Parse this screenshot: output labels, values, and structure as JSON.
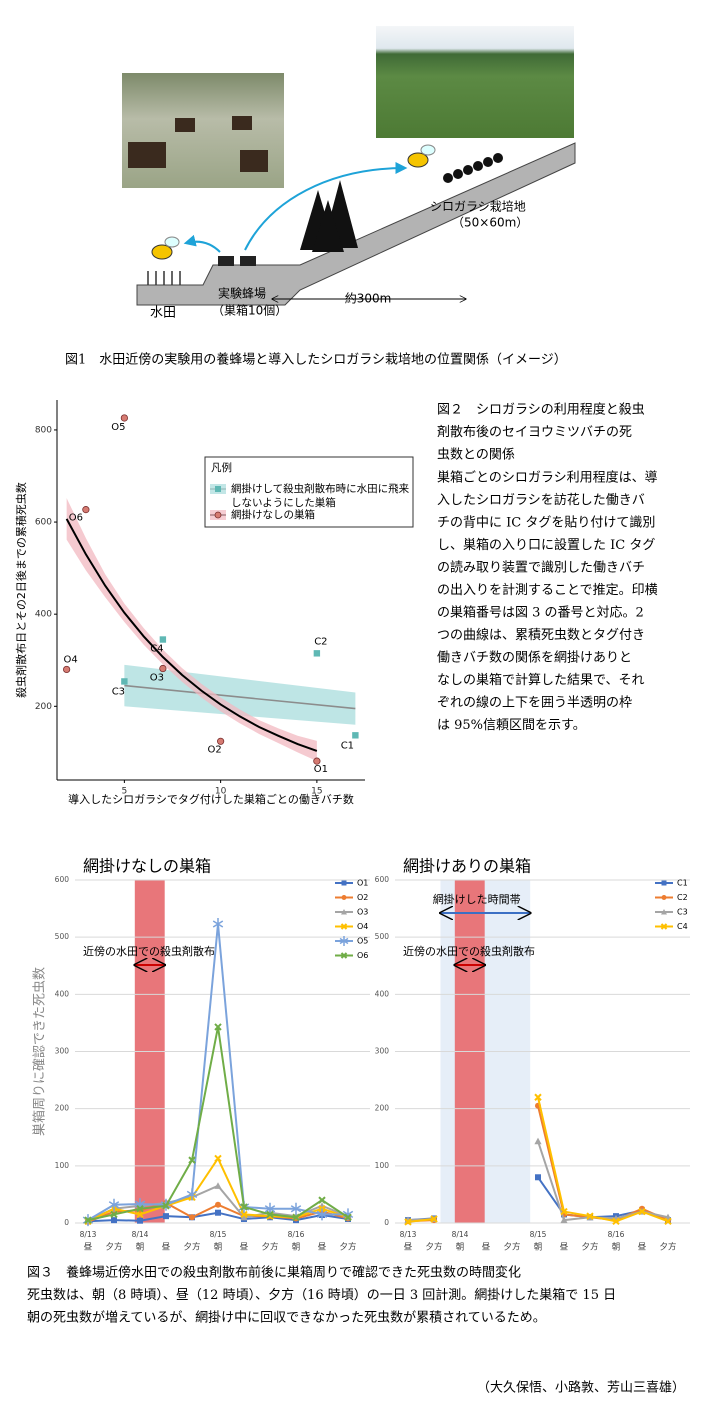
{
  "figure1": {
    "labels": {
      "paddy": "水田",
      "apiary": "実験蜂場",
      "hives": "（巣箱10個）",
      "distance": "約300m",
      "field": "シロガラシ栽培地",
      "field_size": "（50×60m）"
    },
    "caption": "図1　水田近傍の実験用の養蜂場と導入したシロガラシ栽培地の位置関係（イメージ）"
  },
  "figure2_caption": {
    "title_lines": [
      "図２　シロガラシの利用程度と殺虫",
      "剤散布後のセイヨウミツバチの死",
      "虫数との関係"
    ],
    "body_lines": [
      "巣箱ごとのシロガラシ利用程度は、導",
      "入したシロガラシを訪花した働きバ",
      "チの背中に IC タグを貼り付けて識別",
      "し、巣箱の入り口に設置した IC タグ",
      "の読み取り装置で識別した働きバチ",
      "の出入りを計測することで推定。印横",
      "の巣箱番号は図 3 の番号と対応。2",
      "つの曲線は、累積死虫数とタグ付き",
      "働きバチ数の関係を網掛けありと",
      "なしの巣箱で計算した結果で、それ",
      "ぞれの線の上下を囲う半透明の枠",
      "は 95%信頼区間を示す。"
    ]
  },
  "chart_data": [
    {
      "type": "scatter",
      "xlabel": "導入したシロガラシでタグ付けした巣箱ごとの働きバチ数",
      "ylabel": "殺虫剤散布日とその2日後までの累積死虫数",
      "xlim": [
        1.5,
        17.5
      ],
      "ylim": [
        40,
        865
      ],
      "xticks": [
        5,
        10,
        15
      ],
      "yticks": [
        200,
        400,
        600,
        800
      ],
      "legend_title": "凡例",
      "legend": "upper right",
      "series": [
        {
          "name": "網掛けして殺虫剤散布時に水田に飛来しないようにした巣箱",
          "color": "#5fb8b4",
          "marker": "square",
          "labels": [
            "C1",
            "C2",
            "C3",
            "C4"
          ],
          "x": [
            17,
            15,
            5,
            7
          ],
          "values": [
            137,
            315,
            254,
            345
          ],
          "fit": {
            "color": "#8c8c8c",
            "band_color": "#a8dcdc",
            "x": [
              5,
              17
            ],
            "values": [
              245,
              195
            ],
            "lower": [
              200,
              160
            ],
            "upper": [
              290,
              230
            ]
          }
        },
        {
          "name": "網掛けなしの巣箱",
          "color": "#d67b72",
          "marker": "circle",
          "labels": [
            "O1",
            "O2",
            "O3",
            "O4",
            "O5",
            "O6"
          ],
          "x": [
            15,
            10,
            7,
            2,
            5,
            3
          ],
          "values": [
            81,
            124,
            282,
            280,
            826,
            627
          ],
          "fit": {
            "color": "#000000",
            "band_color": "#f2b8c0",
            "x": [
              2,
              3,
              4,
              5,
              6,
              7,
              8,
              9,
              10,
              11,
              12,
              13,
              14,
              15
            ],
            "values": [
              607,
              530,
              462,
              403,
              352,
              307,
              268,
              234,
              204,
              178,
              155,
              136,
              118,
              103
            ],
            "lower": [
              562,
              495,
              437,
              383,
              334,
              291,
              253,
              219,
              189,
              163,
              140,
              120,
              100,
              81
            ],
            "upper": [
              652,
              565,
              487,
              423,
              370,
              323,
              283,
              249,
              219,
              193,
              170,
              152,
              136,
              125
            ]
          }
        }
      ]
    },
    {
      "type": "line",
      "title": "網掛けなしの巣箱",
      "ylabel": "巣箱周りに確認できた死虫数",
      "ylim": [
        0,
        600
      ],
      "yticks": [
        0,
        100,
        200,
        300,
        400,
        500,
        600
      ],
      "grid": true,
      "legend": "upper right",
      "dates": [
        "8/13",
        null,
        "8/14",
        null,
        null,
        "8/15",
        null,
        null,
        "8/16",
        null,
        null
      ],
      "categories": [
        "昼",
        "夕方",
        "朝",
        "昼",
        "夕方",
        "朝",
        "昼",
        "夕方",
        "朝",
        "昼",
        "夕方"
      ],
      "annotations": [
        "近傍の水田での殺虫剤散布"
      ],
      "spray_color": "#e8767a",
      "series": [
        {
          "name": "O1",
          "color": "#4472c4",
          "marker": "square",
          "values": [
            3,
            5,
            4,
            12,
            10,
            18,
            7,
            10,
            5,
            14,
            7
          ]
        },
        {
          "name": "O2",
          "color": "#ed7d31",
          "marker": "circle",
          "values": [
            2,
            20,
            22,
            35,
            10,
            32,
            12,
            12,
            8,
            20,
            8
          ]
        },
        {
          "name": "O3",
          "color": "#a5a5a5",
          "marker": "triangle",
          "values": [
            5,
            25,
            30,
            35,
            45,
            65,
            10,
            18,
            12,
            30,
            12
          ]
        },
        {
          "name": "O4",
          "color": "#ffc000",
          "marker": "cross",
          "values": [
            3,
            25,
            15,
            30,
            45,
            113,
            15,
            12,
            10,
            25,
            10
          ]
        },
        {
          "name": "O5",
          "color": "#7ba3dc",
          "marker": "star",
          "values": [
            5,
            32,
            33,
            32,
            50,
            523,
            28,
            25,
            25,
            15,
            15
          ]
        },
        {
          "name": "O6",
          "color": "#70ad47",
          "marker": "cross",
          "values": [
            5,
            15,
            25,
            30,
            110,
            343,
            28,
            15,
            10,
            40,
            10
          ]
        }
      ]
    },
    {
      "type": "line",
      "title": "網掛けありの巣箱",
      "ylim": [
        0,
        600
      ],
      "yticks": [
        0,
        100,
        200,
        300,
        400,
        500,
        600
      ],
      "grid": true,
      "legend": "upper right",
      "dates": [
        "8/13",
        null,
        "8/14",
        null,
        null,
        "8/15",
        null,
        null,
        "8/16",
        null,
        null
      ],
      "categories": [
        "昼",
        "夕方",
        "朝",
        "昼",
        "夕方",
        "朝",
        "昼",
        "夕方",
        "朝",
        "昼",
        "夕方"
      ],
      "annotations": [
        "網掛けした時間帯",
        "近傍の水田での殺虫剤散布"
      ],
      "spray_color": "#e8767a",
      "net_color": "#e6eef8",
      "series": [
        {
          "name": "C1",
          "color": "#4472c4",
          "marker": "square",
          "values": [
            5,
            8,
            null,
            null,
            null,
            80,
            15,
            10,
            12,
            22,
            5
          ]
        },
        {
          "name": "C2",
          "color": "#ed7d31",
          "marker": "circle",
          "values": [
            3,
            5,
            null,
            null,
            null,
            205,
            15,
            10,
            5,
            25,
            5
          ]
        },
        {
          "name": "C3",
          "color": "#a5a5a5",
          "marker": "triangle",
          "values": [
            5,
            7,
            null,
            null,
            null,
            143,
            5,
            10,
            8,
            20,
            10
          ]
        },
        {
          "name": "C4",
          "color": "#ffc000",
          "marker": "cross",
          "values": [
            2,
            7,
            null,
            null,
            null,
            220,
            20,
            12,
            3,
            20,
            3
          ]
        }
      ]
    }
  ],
  "figure3_caption": {
    "lines": [
      "図３　養蜂場近傍水田での殺虫剤散布前後に巣箱周りで確認できた死虫数の時間変化",
      "死虫数は、朝（8 時頃）、昼（12 時頃）、夕方（16 時頃）の一日 3 回計測。網掛けした巣箱で 15 日",
      "朝の死虫数が増えているが、網掛け中に回収できなかった死虫数が累積されているため。"
    ]
  },
  "authors": "（大久保悟、小路敦、芳山三喜雄）"
}
